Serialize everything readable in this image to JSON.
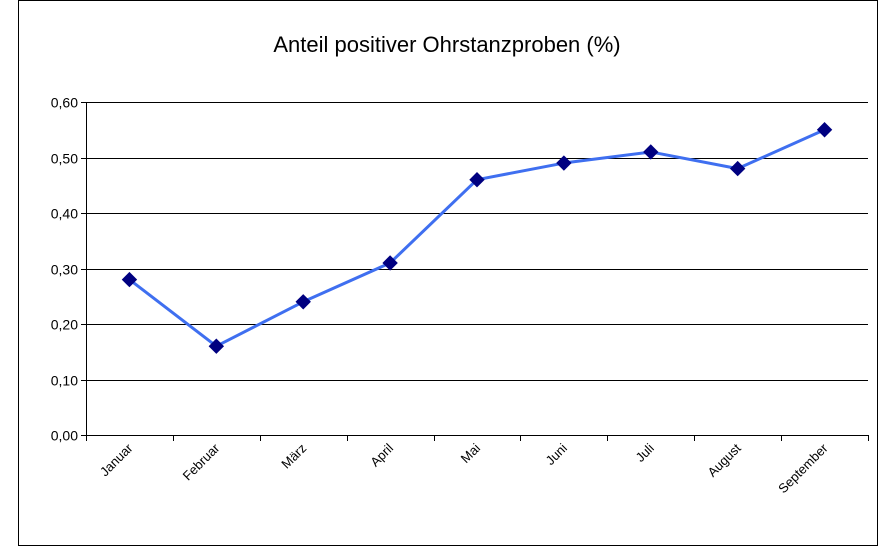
{
  "chart_data": {
    "type": "line",
    "title": "Anteil positiver Ohrstanzproben (%)",
    "categories": [
      "Januar",
      "Februar",
      "März",
      "April",
      "Mai",
      "Juni",
      "Juli",
      "August",
      "September"
    ],
    "series": [
      {
        "name": "Anteil positiver Ohrstanzproben (%)",
        "color": "#3f6ff0",
        "marker_color": "#000080",
        "values": [
          0.28,
          0.16,
          0.24,
          0.31,
          0.46,
          0.49,
          0.51,
          0.48,
          0.55
        ]
      }
    ],
    "ylim": [
      0,
      0.6
    ],
    "yticks": [
      {
        "value": 0,
        "label": "0,00"
      },
      {
        "value": 0.1,
        "label": "0,10"
      },
      {
        "value": 0.2,
        "label": "0,20"
      },
      {
        "value": 0.3,
        "label": "0,30"
      },
      {
        "value": 0.4,
        "label": "0,40"
      },
      {
        "value": 0.5,
        "label": "0,50"
      },
      {
        "value": 0.6,
        "label": "0,60"
      }
    ],
    "grid": true
  }
}
